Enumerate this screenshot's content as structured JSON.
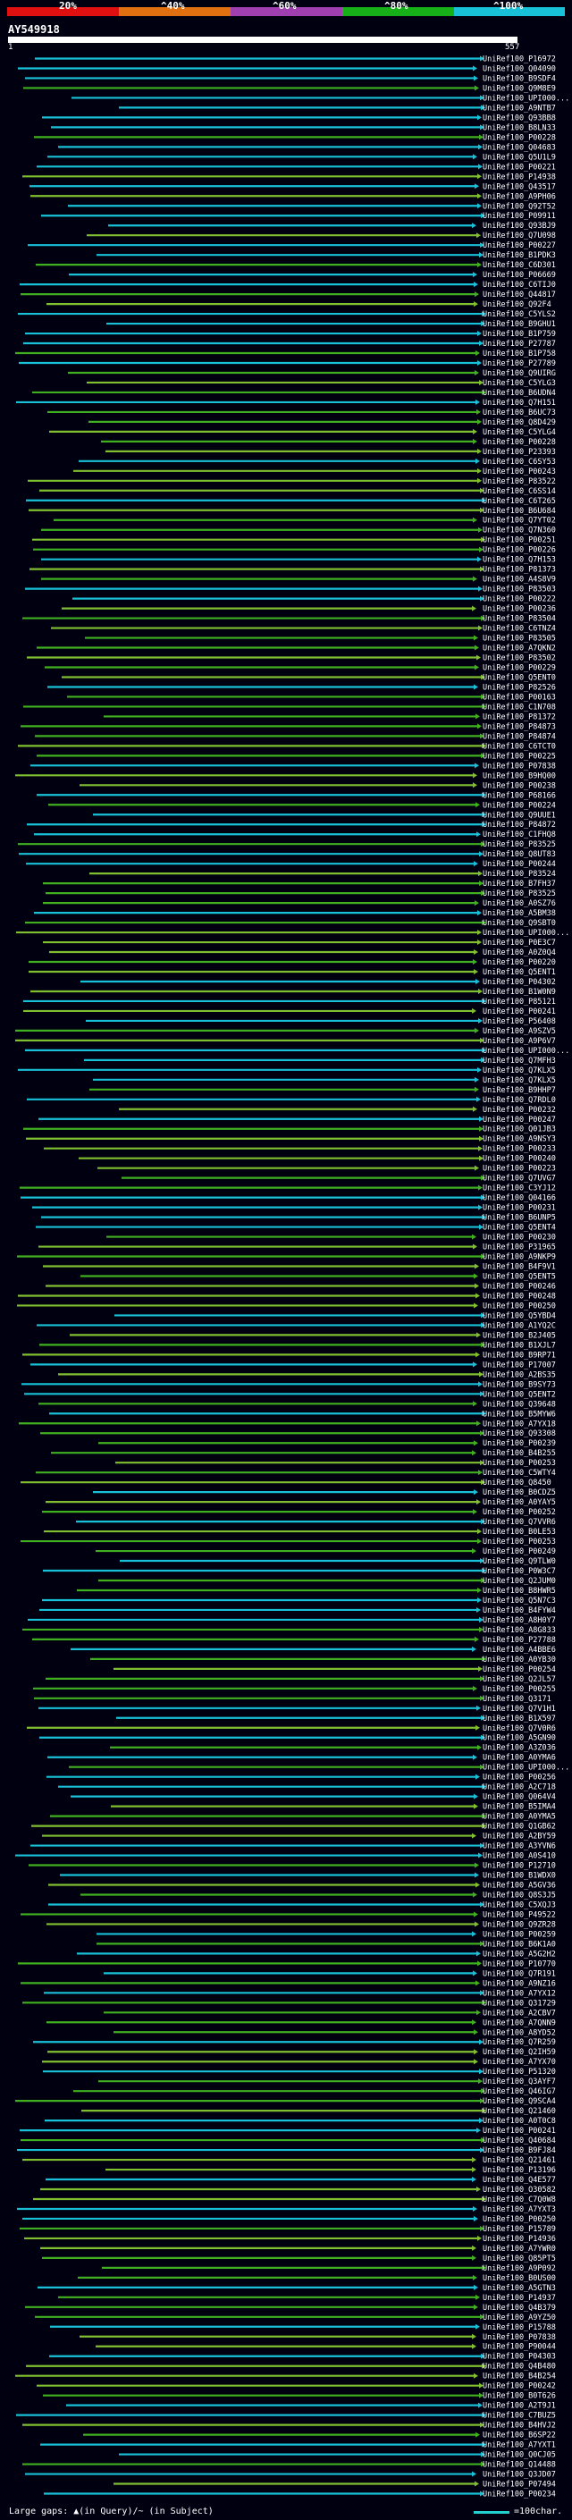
{
  "scale": {
    "ticks": [
      "20%",
      "^40%",
      "^60%",
      "^80%",
      "^100%"
    ],
    "colors": [
      "#e01010",
      "#e07010",
      "#a040b0",
      "#18b018",
      "#18c0d8"
    ]
  },
  "query": {
    "id": "AY549918",
    "start": "1",
    "end": "557"
  },
  "hits": [
    "UniRef100_P16972",
    "UniRef100_Q04090",
    "UniRef100_B9SDF4",
    "UniRef100_Q9M8E9",
    "UniRef100_UPI000...",
    "UniRef100_A9NTB7",
    "UniRef100_Q93BB8",
    "UniRef100_B8LN33",
    "UniRef100_P00228",
    "UniRef100_Q04683",
    "UniRef100_Q5U1L9",
    "UniRef100_P00221",
    "UniRef100_P14938",
    "UniRef100_Q43517",
    "UniRef100_A9PH06",
    "UniRef100_Q92T52",
    "UniRef100_P09911",
    "UniRef100_Q93BJ9",
    "UniRef100_Q7U098",
    "UniRef100_P00227",
    "UniRef100_B1PDK3",
    "UniRef100_C6D301",
    "UniRef100_P06669",
    "UniRef100_C6TIJ0",
    "UniRef100_Q44817",
    "UniRef100_Q92F4",
    "UniRef100_C5YLS2",
    "UniRef100_B9GHU1",
    "UniRef100_B1P759",
    "UniRef100_P27787",
    "UniRef100_B1P758",
    "UniRef100_P27789",
    "UniRef100_Q9UIRG",
    "UniRef100_C5YLG3",
    "UniRef100_B6UDN4",
    "UniRef100_Q7H151",
    "UniRef100_B6UC73",
    "UniRef100_Q8D429",
    "UniRef100_C5YLG4",
    "UniRef100_P00228",
    "UniRef100_P23393",
    "UniRef100_C6SY53",
    "UniRef100_P00243",
    "UniRef100_P83522",
    "UniRef100_C6SS14",
    "UniRef100_C6T265",
    "UniRef100_B6U684",
    "UniRef100_Q7YT02",
    "UniRef100_Q7N360",
    "UniRef100_P00251",
    "UniRef100_P00226",
    "UniRef100_Q7H153",
    "UniRef100_P81373",
    "UniRef100_A4S8V9",
    "UniRef100_P83503",
    "UniRef100_P00222",
    "UniRef100_P00236",
    "UniRef100_P83504",
    "UniRef100_C6TNZ4",
    "UniRef100_P83505",
    "UniRef100_A7QKN2",
    "UniRef100_P83502",
    "UniRef100_P00229",
    "UniRef100_Q5ENT0",
    "UniRef100_P82526",
    "UniRef100_P00163",
    "UniRef100_C1N708",
    "UniRef100_P81372",
    "UniRef100_P84873",
    "UniRef100_P84874",
    "UniRef100_C6TCT0",
    "UniRef100_P00225",
    "UniRef100_P07838",
    "UniRef100_B9HQ00",
    "UniRef100_P00238",
    "UniRef100_P68166",
    "UniRef100_P00224",
    "UniRef100_Q9UUE1",
    "UniRef100_P84872",
    "UniRef100_C1FHQ8",
    "UniRef100_P83525",
    "UniRef100_Q8UT83",
    "UniRef100_P00244",
    "UniRef100_P83524",
    "UniRef100_B7FH37",
    "UniRef100_P83525",
    "UniRef100_A0SZ76",
    "UniRef100_A5BM38",
    "UniRef100_Q9SBT0",
    "UniRef100_UPI000...",
    "UniRef100_P0E3C7",
    "UniRef100_A0Z0Q4",
    "UniRef100_P00220",
    "UniRef100_Q5ENT1",
    "UniRef100_P04302",
    "UniRef100_B1W0N9",
    "UniRef100_P85121",
    "UniRef100_P00241",
    "UniRef100_P56408",
    "UniRef100_A9SZV5",
    "UniRef100_A9P6V7",
    "UniRef100_UPI000...",
    "UniRef100_Q7MFH3",
    "UniRef100_Q7KLX5",
    "UniRef100_Q7KLX5",
    "UniRef100_B9HHP7",
    "UniRef100_Q7RDL0",
    "UniRef100_P00232",
    "UniRef100_P00247",
    "UniRef100_Q01JB3",
    "UniRef100_A9NSY3",
    "UniRef100_P00233",
    "UniRef100_P00240",
    "UniRef100_P00223",
    "UniRef100_Q7UVG7",
    "UniRef100_C3YJ12",
    "UniRef100_Q04166",
    "UniRef100_P00231",
    "UniRef100_B6UNP5",
    "UniRef100_Q5ENT4",
    "UniRef100_P00230",
    "UniRef100_P31965",
    "UniRef100_A9NKP9",
    "UniRef100_B4F9V1",
    "UniRef100_Q5ENT5",
    "UniRef100_P00246",
    "UniRef100_P00248",
    "UniRef100_P00250",
    "UniRef100_Q5YBD4",
    "UniRef100_A1YQ2C",
    "UniRef100_B2J405",
    "UniRef100_B1XJL7",
    "UniRef100_B9RP71",
    "UniRef100_P17007",
    "UniRef100_A2BS35",
    "UniRef100_B9SY73",
    "UniRef100_Q5ENT2",
    "UniRef100_Q39648",
    "UniRef100_B5MYW6",
    "UniRef100_A7YX18",
    "UniRef100_Q93308",
    "UniRef100_P00239",
    "UniRef100_B4B255",
    "UniRef100_P00253",
    "UniRef100_C5WTY4",
    "UniRef100_Q8450",
    "UniRef100_B0CDZ5",
    "UniRef100_A0YAY5",
    "UniRef100_P00252",
    "UniRef100_Q7VVR6",
    "UniRef100_B0LE53",
    "UniRef100_P00253",
    "UniRef100_P00249",
    "UniRef100_Q9TLW0",
    "UniRef100_P0W3C7",
    "UniRef100_Q2JUM0",
    "UniRef100_B8HWR5",
    "UniRef100_Q5N7C3",
    "UniRef100_B4FYW4",
    "UniRef100_A8H0Y7",
    "UniRef100_A8G833",
    "UniRef100_P27788",
    "UniRef100_A4BBE6",
    "UniRef100_A0YB30",
    "UniRef100_P00254",
    "UniRef100_Q2JL57",
    "UniRef100_P00255",
    "UniRef100_Q3171",
    "UniRef100_Q7V1H1",
    "UniRef100_B1X597",
    "UniRef100_Q7V0R6",
    "UniRef100_A5GN90",
    "UniRef100_A3Z036",
    "UniRef100_A0YMA6",
    "UniRef100_UPI000...",
    "UniRef100_P00256",
    "UniRef100_A2C718",
    "UniRef100_Q064V4",
    "UniRef100_B5IMA4",
    "UniRef100_A0YMA5",
    "UniRef100_Q1GB62",
    "UniRef100_A2BY59",
    "UniRef100_A3YVN6",
    "UniRef100_A0S410",
    "UniRef100_P12710",
    "UniRef100_B1WDX0",
    "UniRef100_A5GV36",
    "UniRef100_Q8S3J5",
    "UniRef100_C5XQJ3",
    "UniRef100_P49522",
    "UniRef100_Q9ZR28",
    "UniRef100_P00259",
    "UniRef100_B6K1A0",
    "UniRef100_A5G2H2",
    "UniRef100_P10770",
    "UniRef100_Q7R191",
    "UniRef100_A9NZ16",
    "UniRef100_A7YX12",
    "UniRef100_Q31729",
    "UniRef100_A2CBV7",
    "UniRef100_A7QNN9",
    "UniRef100_A8YD52",
    "UniRef100_Q7R259",
    "UniRef100_Q2IH59",
    "UniRef100_A7YX70",
    "UniRef100_P51320",
    "UniRef100_Q3AYF7",
    "UniRef100_Q46IG7",
    "UniRef100_Q9SCA4",
    "UniRef100_Q21460",
    "UniRef100_A0T0C8",
    "UniRef100_P00241",
    "UniRef100_Q40684",
    "UniRef100_B9FJ84",
    "UniRef100_Q21461",
    "UniRef100_P13196",
    "UniRef100_Q4E577",
    "UniRef100_O30582",
    "UniRef100_C7Q0W8",
    "UniRef100_A7YXT3",
    "UniRef100_P00250",
    "UniRef100_P15789",
    "UniRef100_P14936",
    "UniRef100_A7YWR0",
    "UniRef100_Q85PT5",
    "UniRef100_A9P092",
    "UniRef100_B0US00",
    "UniRef100_A5GTN3",
    "UniRef100_P14937",
    "UniRef100_Q4B379",
    "UniRef100_A9YZ50",
    "UniRef100_P15788",
    "UniRef100_P07838",
    "UniRef100_P90044",
    "UniRef100_P04303",
    "UniRef100_Q4B480",
    "UniRef100_B4B254",
    "UniRef100_P00242",
    "UniRef100_B0T626",
    "UniRef100_A2T9J1",
    "UniRef100_C7BUZ5",
    "UniRef100_B4HVJ2",
    "UniRef100_B6SP22",
    "UniRef100_A7YXT1",
    "UniRef100_Q0CJ05",
    "UniRef100_Q14488",
    "UniRef100_Q3JD07",
    "UniRef100_P07494",
    "UniRef100_P00234"
  ],
  "footer": {
    "gap_text": "Large gaps: ▲(in Query)/~ (in Subject)",
    "scale_text": "=100char."
  },
  "colors": {
    "background": "#000010",
    "high_identity": "#18c0d8",
    "medium_identity": "#40b020",
    "low_identity": "#80c030",
    "text": "#ffffff"
  }
}
